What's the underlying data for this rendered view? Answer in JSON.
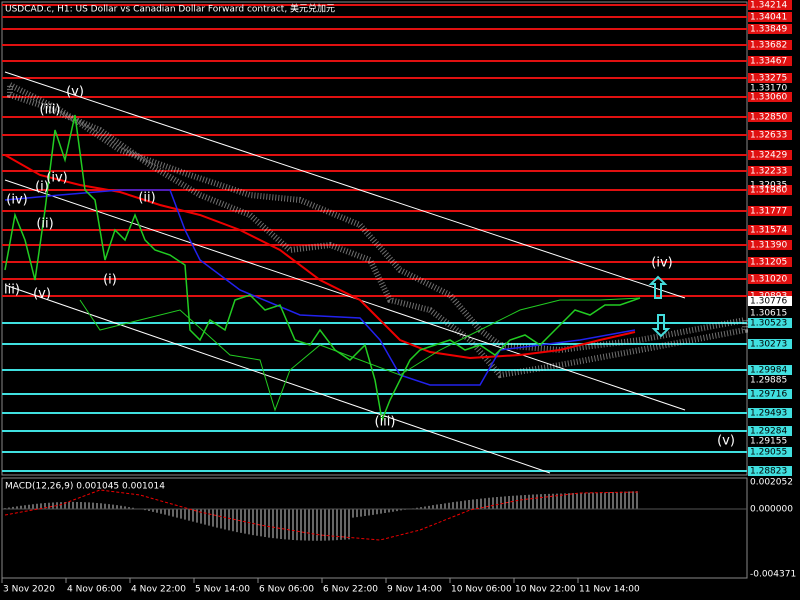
{
  "header": {
    "title": "USDCAD.c, H1:  US Dollar vs Canadian Dollar Forward contract, 美元兑加元"
  },
  "red_levels": [
    "1.34214",
    "1.34041",
    "1.33849",
    "1.33682",
    "1.33467",
    "1.33275",
    "1.33060",
    "1.32850",
    "1.32633",
    "1.32429",
    "1.32233",
    "1.31980",
    "1.31777",
    "1.31574",
    "1.31390",
    "1.31205",
    "1.31020",
    "1.30893"
  ],
  "cyan_levels": [
    "1.30523",
    "1.30273",
    "1.29984",
    "1.29716",
    "1.29493",
    "1.29284",
    "1.29055",
    "1.28823"
  ],
  "white_labels": [
    "1.33170",
    "1.32035",
    "1.30776",
    "1.30615",
    "1.29885",
    "1.29155"
  ],
  "time_labels": [
    "3 Nov 2020",
    "4 Nov 06:00",
    "4 Nov 22:00",
    "5 Nov 14:00",
    "6 Nov 06:00",
    "6 Nov 22:00",
    "9 Nov 14:00",
    "10 Nov 06:00",
    "10 Nov 22:00",
    "11 Nov 14:00"
  ],
  "macd": {
    "label": "MACD(12,26,9) 0.001045 0.001014",
    "axis": [
      "0.002052",
      "0.000000",
      "-0.004371"
    ]
  },
  "wave_labels": [
    "(v)",
    "(iii)",
    "(iv)",
    "(i)",
    "(ii)",
    "(iv)",
    "(ii)",
    "(i)",
    "iii)",
    "(v)",
    "(iii)",
    "(iv)",
    "(v)"
  ]
}
